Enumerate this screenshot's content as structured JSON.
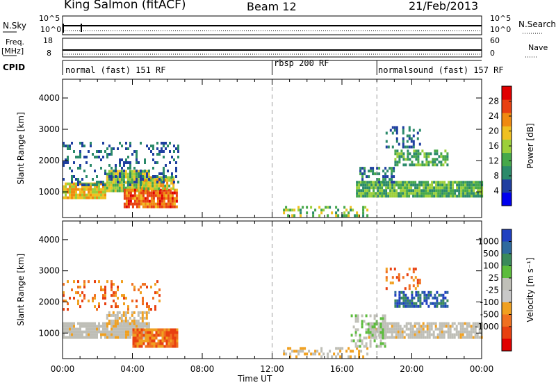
{
  "header": {
    "station": "King Salmon (fitACF)",
    "beam": "Beam 12",
    "date": "21/Feb/2013"
  },
  "top_panels": {
    "nsky_label": "N.Sky",
    "nsky_ticks": [
      "10^5",
      "10^0"
    ],
    "nsearch_label": "N.Search",
    "nsearch_ticks": [
      "10^5",
      "10^0"
    ],
    "freq_label": "Freq.",
    "freq_unit": "[MHz]",
    "freq_ticks": [
      "18",
      "8"
    ],
    "nave_label": "Nave",
    "nave_ticks": [
      "60",
      "0"
    ],
    "cpid_label": "CPID"
  },
  "cpid_modes": [
    {
      "label": "normal (fast) 151 RF",
      "start": "00:00",
      "end": "12:00"
    },
    {
      "label": "rbsp 200 RF",
      "start": "12:00",
      "end": "18:00"
    },
    {
      "label": "normalsound (fast) 157 RF",
      "start": "18:00",
      "end": "24:00"
    }
  ],
  "colors": {
    "power_scale": [
      "#0000ee",
      "#1f3fa0",
      "#2b8a6a",
      "#46a84a",
      "#9ccf3a",
      "#f0c020",
      "#f08a10",
      "#e84010",
      "#e00000"
    ],
    "velocity_scale": [
      "#2040c0",
      "#2e6a9e",
      "#3a8a5a",
      "#5cbc3c",
      "#c0c0b8",
      "#c8c8c8",
      "#f0a020",
      "#f07020",
      "#e84010",
      "#e00000"
    ],
    "ground_scatter": "#bebeb6"
  },
  "chart_data": [
    {
      "type": "heatmap",
      "title": "Power",
      "xlabel": "Time UT",
      "ylabel": "Slant Range [km]",
      "x_ticks": [
        "00:00",
        "04:00",
        "08:00",
        "12:00",
        "16:00",
        "20:00",
        "00:00"
      ],
      "y_ticks": [
        1000,
        2000,
        3000,
        4000
      ],
      "ylim": [
        180,
        4600
      ],
      "colorbar_label": "Power [dB]",
      "colorbar_ticks": [
        4,
        8,
        12,
        16,
        20,
        24,
        28
      ],
      "colorbar_range": [
        0,
        32
      ],
      "regions": [
        {
          "t0": 0.0,
          "t1": 2.5,
          "r0": 850,
          "r1": 1300,
          "level": 20,
          "spread": 6
        },
        {
          "t0": 2.5,
          "t1": 5.0,
          "r0": 1050,
          "r1": 1700,
          "level": 16,
          "spread": 6
        },
        {
          "t0": 3.5,
          "t1": 6.6,
          "r0": 550,
          "r1": 1100,
          "level": 26,
          "spread": 5
        },
        {
          "t0": 4.5,
          "t1": 6.4,
          "r0": 1100,
          "r1": 1500,
          "level": 18,
          "spread": 6
        },
        {
          "t0": 0.0,
          "t1": 6.6,
          "r0": 1200,
          "r1": 2600,
          "level": 6,
          "spread": 4,
          "density": 0.25
        },
        {
          "t0": 12.5,
          "t1": 17.5,
          "r0": 200,
          "r1": 550,
          "level": 14,
          "spread": 8,
          "density": 0.4
        },
        {
          "t0": 16.8,
          "t1": 24.0,
          "r0": 850,
          "r1": 1350,
          "level": 12,
          "spread": 6
        },
        {
          "t0": 17.0,
          "t1": 19.0,
          "r0": 1300,
          "r1": 1800,
          "level": 8,
          "spread": 4,
          "density": 0.5
        },
        {
          "t0": 19.0,
          "t1": 22.0,
          "r0": 1900,
          "r1": 2350,
          "level": 12,
          "spread": 6,
          "density": 0.6
        },
        {
          "t0": 18.5,
          "t1": 20.5,
          "r0": 2400,
          "r1": 3100,
          "level": 6,
          "spread": 4,
          "density": 0.3
        }
      ]
    },
    {
      "type": "heatmap",
      "title": "Velocity",
      "xlabel": "Time UT",
      "ylabel": "Slant Range [km]",
      "x_ticks": [
        "00:00",
        "04:00",
        "08:00",
        "12:00",
        "16:00",
        "20:00",
        "00:00"
      ],
      "y_ticks": [
        1000,
        2000,
        3000,
        4000
      ],
      "ylim": [
        180,
        4600
      ],
      "colorbar_label": "Velocity [m s⁻¹]",
      "colorbar_ticks": [
        "1000",
        "500",
        "100",
        "25",
        "-25",
        "-100",
        "-500",
        "-1000"
      ],
      "regions": [
        {
          "t0": 0.0,
          "t1": 5.0,
          "r0": 850,
          "r1": 1350,
          "class": "ground",
          "density": 0.9
        },
        {
          "t0": 4.0,
          "t1": 6.6,
          "r0": 550,
          "r1": 1150,
          "class": "neg",
          "density": 0.9
        },
        {
          "t0": 2.5,
          "t1": 5.0,
          "r0": 1300,
          "r1": 1700,
          "class": "negsmall",
          "density": 0.6
        },
        {
          "t0": 0.0,
          "t1": 5.5,
          "r0": 1800,
          "r1": 2700,
          "class": "neg",
          "density": 0.18
        },
        {
          "t0": 12.5,
          "t1": 17.5,
          "r0": 200,
          "r1": 550,
          "class": "negsmall",
          "density": 0.35
        },
        {
          "t0": 17.5,
          "t1": 24.0,
          "r0": 850,
          "r1": 1350,
          "class": "ground",
          "density": 0.85
        },
        {
          "t0": 16.5,
          "t1": 18.5,
          "r0": 600,
          "r1": 1600,
          "class": "pos",
          "density": 0.45
        },
        {
          "t0": 19.0,
          "t1": 22.0,
          "r0": 1900,
          "r1": 2350,
          "class": "posbig",
          "density": 0.6
        },
        {
          "t0": 18.5,
          "t1": 20.5,
          "r0": 2400,
          "r1": 3100,
          "class": "neg",
          "density": 0.25
        }
      ]
    }
  ]
}
